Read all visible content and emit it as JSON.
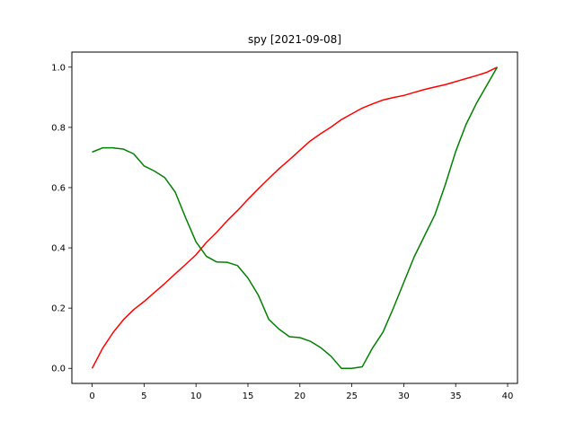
{
  "chart_data": {
    "type": "line",
    "title": "spy [2021-09-08]",
    "xlabel": "",
    "ylabel": "",
    "xlim": [
      -1.95,
      40.95
    ],
    "ylim": [
      -0.05,
      1.05
    ],
    "xticks": [
      0,
      5,
      10,
      15,
      20,
      25,
      30,
      35,
      40
    ],
    "yticks": [
      0.0,
      0.2,
      0.4,
      0.6,
      0.8,
      1.0
    ],
    "ytick_labels": [
      "0.0",
      "0.2",
      "0.4",
      "0.6",
      "0.8",
      "1.0"
    ],
    "grid": false,
    "legend": "none",
    "x": [
      0,
      1,
      2,
      3,
      4,
      5,
      6,
      7,
      8,
      9,
      10,
      11,
      12,
      13,
      14,
      15,
      16,
      17,
      18,
      19,
      20,
      21,
      22,
      23,
      24,
      25,
      26,
      27,
      28,
      29,
      30,
      31,
      32,
      33,
      34,
      35,
      36,
      37,
      38,
      39
    ],
    "series": [
      {
        "color": "#ff0000",
        "values": [
          0.0,
          0.066,
          0.118,
          0.161,
          0.195,
          0.222,
          0.252,
          0.282,
          0.314,
          0.345,
          0.377,
          0.418,
          0.452,
          0.49,
          0.524,
          0.561,
          0.596,
          0.63,
          0.663,
          0.693,
          0.724,
          0.755,
          0.779,
          0.801,
          0.826,
          0.845,
          0.864,
          0.878,
          0.891,
          0.899,
          0.906,
          0.916,
          0.926,
          0.934,
          0.942,
          0.952,
          0.962,
          0.972,
          0.983,
          1.0
        ]
      },
      {
        "color": "#008000",
        "values": [
          0.718,
          0.732,
          0.732,
          0.728,
          0.712,
          0.672,
          0.655,
          0.633,
          0.585,
          0.5,
          0.42,
          0.372,
          0.353,
          0.352,
          0.341,
          0.3,
          0.243,
          0.163,
          0.13,
          0.105,
          0.102,
          0.09,
          0.069,
          0.04,
          0.0,
          0.0,
          0.005,
          0.068,
          0.12,
          0.2,
          0.285,
          0.37,
          0.44,
          0.51,
          0.61,
          0.72,
          0.81,
          0.88,
          0.94,
          1.0
        ]
      }
    ]
  }
}
